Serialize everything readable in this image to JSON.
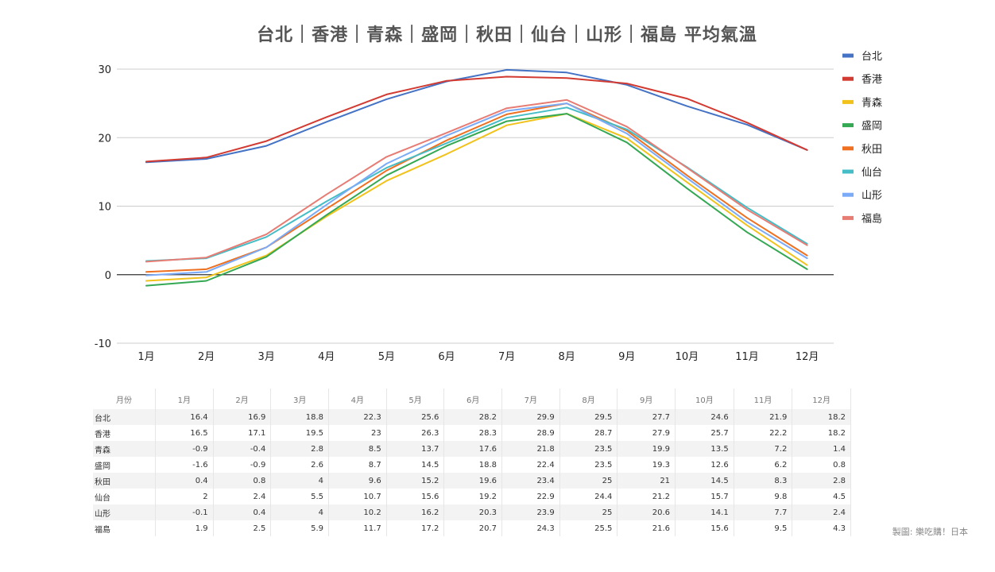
{
  "chart_data": {
    "type": "line",
    "title": "台北｜香港｜青森｜盛岡｜秋田｜仙台｜山形｜福島 平均氣溫",
    "categories": [
      "1月",
      "2月",
      "3月",
      "4月",
      "5月",
      "6月",
      "7月",
      "8月",
      "9月",
      "10月",
      "11月",
      "12月"
    ],
    "ylim": [
      -10,
      30
    ],
    "y_ticks": [
      30,
      20,
      10,
      0,
      -10
    ],
    "grid": true,
    "legend_position": "right",
    "series": [
      {
        "name": "台北",
        "color": "#4472c4",
        "values": [
          16.4,
          16.9,
          18.8,
          22.3,
          25.6,
          28.2,
          29.9,
          29.5,
          27.7,
          24.6,
          21.9,
          18.2
        ]
      },
      {
        "name": "香港",
        "color": "#d23b32",
        "values": [
          16.5,
          17.1,
          19.5,
          23,
          26.3,
          28.3,
          28.9,
          28.7,
          27.9,
          25.7,
          22.2,
          18.2
        ]
      },
      {
        "name": "青森",
        "color": "#f1c21b",
        "values": [
          -0.9,
          -0.4,
          2.8,
          8.5,
          13.7,
          17.6,
          21.8,
          23.5,
          19.9,
          13.5,
          7.2,
          1.4
        ]
      },
      {
        "name": "盛岡",
        "color": "#34a853",
        "values": [
          -1.6,
          -0.9,
          2.6,
          8.7,
          14.5,
          18.8,
          22.4,
          23.5,
          19.3,
          12.6,
          6.2,
          0.8
        ]
      },
      {
        "name": "秋田",
        "color": "#ee7020",
        "values": [
          0.4,
          0.8,
          4,
          9.6,
          15.2,
          19.6,
          23.4,
          25,
          21,
          14.5,
          8.3,
          2.8
        ]
      },
      {
        "name": "仙台",
        "color": "#46bdc6",
        "values": [
          2,
          2.4,
          5.5,
          10.7,
          15.6,
          19.2,
          22.9,
          24.4,
          21.2,
          15.7,
          9.8,
          4.5
        ]
      },
      {
        "name": "山形",
        "color": "#7baaf7",
        "values": [
          -0.1,
          0.4,
          4,
          10.2,
          16.2,
          20.3,
          23.9,
          25,
          20.6,
          14.1,
          7.7,
          2.4
        ]
      },
      {
        "name": "福島",
        "color": "#e67c73",
        "values": [
          1.9,
          2.5,
          5.9,
          11.7,
          17.2,
          20.7,
          24.3,
          25.5,
          21.6,
          15.6,
          9.5,
          4.3
        ]
      }
    ]
  },
  "table": {
    "header_label": "月份",
    "columns": [
      "1月",
      "2月",
      "3月",
      "4月",
      "5月",
      "6月",
      "7月",
      "8月",
      "9月",
      "10月",
      "11月",
      "12月"
    ],
    "rows": [
      {
        "name": "台北",
        "values": [
          "16.4",
          "16.9",
          "18.8",
          "22.3",
          "25.6",
          "28.2",
          "29.9",
          "29.5",
          "27.7",
          "24.6",
          "21.9",
          "18.2"
        ]
      },
      {
        "name": "香港",
        "values": [
          "16.5",
          "17.1",
          "19.5",
          "23",
          "26.3",
          "28.3",
          "28.9",
          "28.7",
          "27.9",
          "25.7",
          "22.2",
          "18.2"
        ]
      },
      {
        "name": "青森",
        "values": [
          "-0.9",
          "-0.4",
          "2.8",
          "8.5",
          "13.7",
          "17.6",
          "21.8",
          "23.5",
          "19.9",
          "13.5",
          "7.2",
          "1.4"
        ]
      },
      {
        "name": "盛岡",
        "values": [
          "-1.6",
          "-0.9",
          "2.6",
          "8.7",
          "14.5",
          "18.8",
          "22.4",
          "23.5",
          "19.3",
          "12.6",
          "6.2",
          "0.8"
        ]
      },
      {
        "name": "秋田",
        "values": [
          "0.4",
          "0.8",
          "4",
          "9.6",
          "15.2",
          "19.6",
          "23.4",
          "25",
          "21",
          "14.5",
          "8.3",
          "2.8"
        ]
      },
      {
        "name": "仙台",
        "values": [
          "2",
          "2.4",
          "5.5",
          "10.7",
          "15.6",
          "19.2",
          "22.9",
          "24.4",
          "21.2",
          "15.7",
          "9.8",
          "4.5"
        ]
      },
      {
        "name": "山形",
        "values": [
          "-0.1",
          "0.4",
          "4",
          "10.2",
          "16.2",
          "20.3",
          "23.9",
          "25",
          "20.6",
          "14.1",
          "7.7",
          "2.4"
        ]
      },
      {
        "name": "福島",
        "values": [
          "1.9",
          "2.5",
          "5.9",
          "11.7",
          "17.2",
          "20.7",
          "24.3",
          "25.5",
          "21.6",
          "15.6",
          "9.5",
          "4.3"
        ]
      }
    ]
  },
  "credit": "製圖: 樂吃購！日本"
}
